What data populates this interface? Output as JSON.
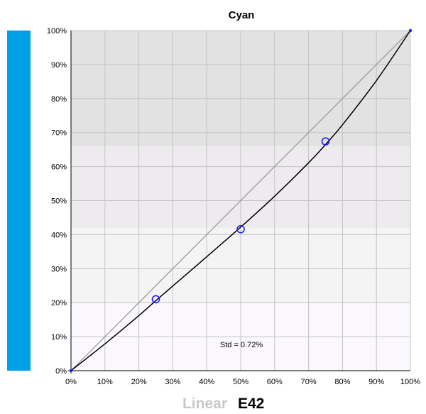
{
  "chart_data": {
    "type": "line",
    "title": "Cyan",
    "color_bar": "#00a0e6",
    "x_ticks": [
      "0%",
      "10%",
      "20%",
      "30%",
      "40%",
      "50%",
      "60%",
      "70%",
      "80%",
      "90%",
      "100%"
    ],
    "y_ticks": [
      "0%",
      "10%",
      "20%",
      "30%",
      "40%",
      "50%",
      "60%",
      "70%",
      "80%",
      "90%",
      "100%"
    ],
    "xlim": [
      0,
      100
    ],
    "ylim": [
      0,
      100
    ],
    "grid": true,
    "series": [
      {
        "name": "Linear",
        "color": "#a0a0a0",
        "x": [
          0,
          100
        ],
        "y": [
          0,
          100
        ]
      },
      {
        "name": "E42",
        "color": "#000000",
        "x": [
          0,
          10,
          20,
          25,
          30,
          40,
          50,
          60,
          70,
          75,
          80,
          90,
          100
        ],
        "y": [
          0,
          7.9,
          16.2,
          20.6,
          24.9,
          33.5,
          42.2,
          51.3,
          61.1,
          66.5,
          72.3,
          85.3,
          100
        ]
      }
    ],
    "markers": {
      "color": "#2020ff",
      "x": [
        25,
        50,
        75
      ],
      "y": [
        21,
        41.6,
        67.4
      ]
    },
    "endpoints": {
      "color": "#2020ff",
      "x": [
        0,
        100
      ],
      "y": [
        0,
        100
      ]
    },
    "bands": [
      {
        "y0": 0,
        "y1": 20,
        "color": "#faf8fc"
      },
      {
        "y0": 20,
        "y1": 42,
        "color": "#f4f4f4"
      },
      {
        "y0": 42,
        "y1": 66,
        "color": "#eeebee"
      },
      {
        "y0": 66,
        "y1": 100,
        "color": "#e2e2e2"
      }
    ],
    "annotation": "Std = 0.72%",
    "legend": [
      "Linear",
      "E42"
    ],
    "legend_placement": "bottom-center"
  }
}
